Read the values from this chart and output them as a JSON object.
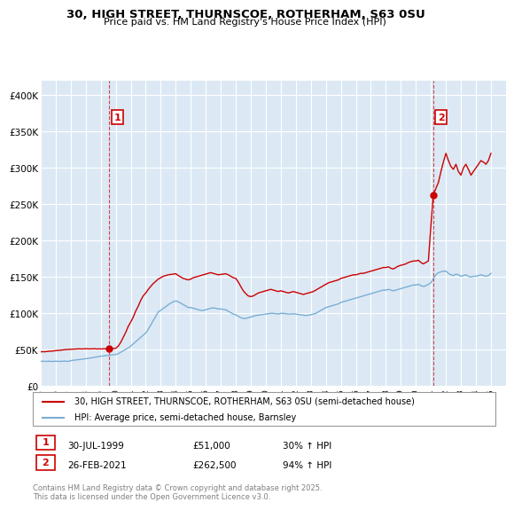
{
  "title_line1": "30, HIGH STREET, THURNSCOE, ROTHERHAM, S63 0SU",
  "title_line2": "Price paid vs. HM Land Registry's House Price Index (HPI)",
  "ylim": [
    0,
    420000
  ],
  "yticks": [
    0,
    50000,
    100000,
    150000,
    200000,
    250000,
    300000,
    350000,
    400000
  ],
  "ytick_labels": [
    "£0",
    "£50K",
    "£100K",
    "£150K",
    "£200K",
    "£250K",
    "£300K",
    "£350K",
    "£400K"
  ],
  "xlim_start": 1995.0,
  "xlim_end": 2026.0,
  "background_color": "#ffffff",
  "plot_bg_color": "#dce9f5",
  "grid_color": "#ffffff",
  "red_color": "#cc0000",
  "blue_color": "#7aaed4",
  "point1_x": 1999.58,
  "point1_y": 51000,
  "point2_x": 2021.15,
  "point2_y": 262500,
  "legend_line1": "30, HIGH STREET, THURNSCOE, ROTHERHAM, S63 0SU (semi-detached house)",
  "legend_line2": "HPI: Average price, semi-detached house, Barnsley",
  "point1_date": "30-JUL-1999",
  "point1_price": "£51,000",
  "point1_hpi": "30% ↑ HPI",
  "point2_date": "26-FEB-2021",
  "point2_price": "£262,500",
  "point2_hpi": "94% ↑ HPI",
  "footer": "Contains HM Land Registry data © Crown copyright and database right 2025.\nThis data is licensed under the Open Government Licence v3.0.",
  "red_x": [
    1995.0,
    1995.08,
    1995.17,
    1995.25,
    1995.33,
    1995.42,
    1995.5,
    1995.58,
    1995.67,
    1995.75,
    1995.83,
    1995.92,
    1996.0,
    1996.08,
    1996.17,
    1996.25,
    1996.33,
    1996.42,
    1996.5,
    1996.58,
    1996.67,
    1996.75,
    1996.83,
    1996.92,
    1997.0,
    1997.08,
    1997.17,
    1997.25,
    1997.33,
    1997.42,
    1997.5,
    1997.58,
    1997.67,
    1997.75,
    1997.83,
    1997.92,
    1998.0,
    1998.08,
    1998.17,
    1998.25,
    1998.33,
    1998.42,
    1998.5,
    1998.58,
    1998.67,
    1998.75,
    1998.83,
    1998.92,
    1999.0,
    1999.08,
    1999.17,
    1999.25,
    1999.33,
    1999.42,
    1999.5,
    1999.58,
    2000.0,
    2000.17,
    2000.33,
    2000.5,
    2000.67,
    2000.83,
    2001.0,
    2001.17,
    2001.33,
    2001.5,
    2001.67,
    2001.83,
    2002.0,
    2002.17,
    2002.33,
    2002.5,
    2002.67,
    2002.83,
    2003.0,
    2003.17,
    2003.33,
    2003.5,
    2003.67,
    2003.83,
    2004.0,
    2004.17,
    2004.33,
    2004.5,
    2004.67,
    2004.83,
    2005.0,
    2005.17,
    2005.33,
    2005.5,
    2005.67,
    2005.83,
    2006.0,
    2006.17,
    2006.33,
    2006.5,
    2006.67,
    2006.83,
    2007.0,
    2007.17,
    2007.33,
    2007.5,
    2007.67,
    2007.83,
    2008.0,
    2008.17,
    2008.33,
    2008.5,
    2008.67,
    2008.83,
    2009.0,
    2009.17,
    2009.33,
    2009.5,
    2009.67,
    2009.83,
    2010.0,
    2010.17,
    2010.33,
    2010.5,
    2010.67,
    2010.83,
    2011.0,
    2011.17,
    2011.33,
    2011.5,
    2011.67,
    2011.83,
    2012.0,
    2012.17,
    2012.33,
    2012.5,
    2012.67,
    2012.83,
    2013.0,
    2013.17,
    2013.33,
    2013.5,
    2013.67,
    2013.83,
    2014.0,
    2014.17,
    2014.33,
    2014.5,
    2014.67,
    2014.83,
    2015.0,
    2015.17,
    2015.33,
    2015.5,
    2015.67,
    2015.83,
    2016.0,
    2016.17,
    2016.33,
    2016.5,
    2016.67,
    2016.83,
    2017.0,
    2017.17,
    2017.33,
    2017.5,
    2017.67,
    2017.83,
    2018.0,
    2018.17,
    2018.33,
    2018.5,
    2018.67,
    2018.83,
    2019.0,
    2019.17,
    2019.33,
    2019.5,
    2019.67,
    2019.83,
    2020.0,
    2020.17,
    2020.33,
    2020.5,
    2020.67,
    2020.83,
    2021.15,
    2021.5,
    2021.67,
    2021.83,
    2022.0,
    2022.17,
    2022.33,
    2022.5,
    2022.67,
    2022.83,
    2023.0,
    2023.17,
    2023.33,
    2023.5,
    2023.67,
    2023.83,
    2024.0,
    2024.17,
    2024.33,
    2024.5,
    2024.67,
    2024.83,
    2025.0
  ],
  "red_y": [
    47000,
    47200,
    47400,
    47100,
    47300,
    47500,
    47800,
    48000,
    47900,
    48100,
    48300,
    48500,
    48700,
    48900,
    49000,
    49200,
    49400,
    49600,
    49800,
    50000,
    50100,
    50200,
    50400,
    50500,
    50600,
    50700,
    50800,
    51000,
    51100,
    51200,
    51300,
    51200,
    51100,
    51000,
    51100,
    51200,
    51300,
    51400,
    51200,
    51000,
    51100,
    51200,
    51300,
    51400,
    51200,
    51000,
    51100,
    51200,
    51000,
    51100,
    51200,
    51300,
    51100,
    51000,
    51000,
    51000,
    52000,
    55000,
    60000,
    67000,
    74000,
    82000,
    88000,
    95000,
    103000,
    110000,
    118000,
    124000,
    128000,
    133000,
    137000,
    141000,
    144000,
    147000,
    149000,
    151000,
    152000,
    153000,
    153500,
    154000,
    154500,
    152000,
    150000,
    148000,
    147000,
    146000,
    147000,
    149000,
    150000,
    151000,
    152000,
    153000,
    154000,
    155000,
    156000,
    155000,
    154000,
    153000,
    153500,
    154000,
    154500,
    153000,
    151000,
    149000,
    148000,
    143000,
    137000,
    131000,
    127000,
    124000,
    123000,
    124000,
    126000,
    128000,
    129000,
    130000,
    131000,
    132000,
    133000,
    132000,
    131000,
    130000,
    131000,
    130000,
    129000,
    128000,
    129000,
    130000,
    129000,
    128000,
    127000,
    126000,
    127000,
    128000,
    129000,
    130000,
    132000,
    134000,
    136000,
    138000,
    140000,
    142000,
    143000,
    144000,
    145000,
    146000,
    148000,
    149000,
    150000,
    151000,
    152000,
    153000,
    153000,
    154000,
    155000,
    155000,
    156000,
    157000,
    158000,
    159000,
    160000,
    161000,
    162000,
    163000,
    163000,
    164000,
    162000,
    161000,
    163000,
    165000,
    166000,
    167000,
    168000,
    170000,
    171000,
    172000,
    172000,
    173000,
    170000,
    168000,
    170000,
    172000,
    262500,
    280000,
    295000,
    308000,
    320000,
    310000,
    302000,
    298000,
    305000,
    295000,
    290000,
    300000,
    305000,
    298000,
    290000,
    295000,
    300000,
    305000,
    310000,
    308000,
    305000,
    310000,
    320000
  ],
  "blue_x": [
    1995.0,
    1995.08,
    1995.17,
    1995.25,
    1995.33,
    1995.42,
    1995.5,
    1995.58,
    1995.67,
    1995.75,
    1995.83,
    1995.92,
    1996.0,
    1996.08,
    1996.17,
    1996.25,
    1996.33,
    1996.42,
    1996.5,
    1996.58,
    1996.67,
    1996.75,
    1996.83,
    1996.92,
    1997.0,
    1997.08,
    1997.17,
    1997.25,
    1997.33,
    1997.42,
    1997.5,
    1997.58,
    1997.67,
    1997.75,
    1997.83,
    1997.92,
    1998.0,
    1998.08,
    1998.17,
    1998.25,
    1998.33,
    1998.42,
    1998.5,
    1998.58,
    1998.67,
    1998.75,
    1998.83,
    1998.92,
    1999.0,
    1999.08,
    1999.17,
    1999.25,
    1999.33,
    1999.42,
    1999.5,
    1999.58,
    1999.67,
    1999.75,
    1999.83,
    1999.92,
    2000.0,
    2000.08,
    2000.17,
    2000.25,
    2000.33,
    2000.42,
    2000.5,
    2000.58,
    2000.67,
    2000.75,
    2000.83,
    2000.92,
    2001.0,
    2001.08,
    2001.17,
    2001.25,
    2001.33,
    2001.42,
    2001.5,
    2001.58,
    2001.67,
    2001.75,
    2001.83,
    2001.92,
    2002.0,
    2002.17,
    2002.33,
    2002.5,
    2002.67,
    2002.83,
    2003.0,
    2003.17,
    2003.33,
    2003.5,
    2003.67,
    2003.83,
    2004.0,
    2004.17,
    2004.33,
    2004.5,
    2004.67,
    2004.83,
    2005.0,
    2005.17,
    2005.33,
    2005.5,
    2005.67,
    2005.83,
    2006.0,
    2006.17,
    2006.33,
    2006.5,
    2006.67,
    2006.83,
    2007.0,
    2007.17,
    2007.33,
    2007.5,
    2007.67,
    2007.83,
    2008.0,
    2008.17,
    2008.33,
    2008.5,
    2008.67,
    2008.83,
    2009.0,
    2009.17,
    2009.33,
    2009.5,
    2009.67,
    2009.83,
    2010.0,
    2010.17,
    2010.33,
    2010.5,
    2010.67,
    2010.83,
    2011.0,
    2011.17,
    2011.33,
    2011.5,
    2011.67,
    2011.83,
    2012.0,
    2012.17,
    2012.33,
    2012.5,
    2012.67,
    2012.83,
    2013.0,
    2013.17,
    2013.33,
    2013.5,
    2013.67,
    2013.83,
    2014.0,
    2014.17,
    2014.33,
    2014.5,
    2014.67,
    2014.83,
    2015.0,
    2015.17,
    2015.33,
    2015.5,
    2015.67,
    2015.83,
    2016.0,
    2016.17,
    2016.33,
    2016.5,
    2016.67,
    2016.83,
    2017.0,
    2017.17,
    2017.33,
    2017.5,
    2017.67,
    2017.83,
    2018.0,
    2018.17,
    2018.33,
    2018.5,
    2018.67,
    2018.83,
    2019.0,
    2019.17,
    2019.33,
    2019.5,
    2019.67,
    2019.83,
    2020.0,
    2020.17,
    2020.33,
    2020.5,
    2020.67,
    2020.83,
    2021.0,
    2021.17,
    2021.33,
    2021.5,
    2021.67,
    2021.83,
    2022.0,
    2022.17,
    2022.33,
    2022.5,
    2022.67,
    2022.83,
    2023.0,
    2023.17,
    2023.33,
    2023.5,
    2023.67,
    2023.83,
    2024.0,
    2024.17,
    2024.33,
    2024.5,
    2024.67,
    2024.83,
    2025.0
  ],
  "blue_y": [
    34000,
    34100,
    34200,
    34000,
    33900,
    34000,
    34100,
    34200,
    34000,
    33800,
    34000,
    34100,
    34200,
    34100,
    34000,
    33900,
    34000,
    34100,
    34200,
    34300,
    34200,
    34100,
    34000,
    34100,
    35000,
    35200,
    35400,
    35600,
    35800,
    36000,
    36200,
    36400,
    36600,
    36800,
    37000,
    37200,
    37500,
    37800,
    38100,
    38400,
    38700,
    39000,
    39300,
    39600,
    39900,
    40200,
    40500,
    40800,
    41000,
    41200,
    41400,
    41600,
    41800,
    42000,
    42200,
    42400,
    42600,
    42800,
    43000,
    43200,
    43500,
    44000,
    44500,
    45500,
    46500,
    47500,
    48500,
    49500,
    50500,
    51500,
    52500,
    53500,
    55000,
    56500,
    58000,
    59500,
    61000,
    62500,
    64000,
    65500,
    67000,
    68500,
    70000,
    71500,
    73000,
    78000,
    84000,
    90000,
    96000,
    102000,
    104000,
    107000,
    109000,
    112000,
    114000,
    116000,
    117000,
    116000,
    114000,
    112000,
    110000,
    108000,
    108000,
    107000,
    106000,
    105000,
    104000,
    104000,
    105000,
    106000,
    107000,
    107500,
    107000,
    106000,
    106000,
    105500,
    105000,
    103000,
    101000,
    99000,
    98000,
    96000,
    94000,
    93000,
    93000,
    94000,
    95000,
    96000,
    97000,
    97500,
    98000,
    98500,
    99000,
    99500,
    100000,
    100000,
    99500,
    99000,
    100000,
    100000,
    99500,
    99000,
    99000,
    99500,
    99000,
    98500,
    98000,
    97500,
    97000,
    97500,
    98000,
    99000,
    100000,
    102000,
    104000,
    106000,
    108000,
    109000,
    110000,
    111000,
    112000,
    113000,
    115000,
    116000,
    117000,
    118000,
    119000,
    120000,
    121000,
    122000,
    123000,
    124000,
    125000,
    126000,
    127000,
    128000,
    129000,
    130000,
    131000,
    132000,
    132000,
    133000,
    132000,
    131000,
    132000,
    133000,
    134000,
    135000,
    136000,
    137000,
    138000,
    139000,
    139000,
    140000,
    138000,
    137000,
    138000,
    140000,
    142000,
    148000,
    153000,
    156000,
    157000,
    158000,
    158000,
    155000,
    153000,
    152000,
    154000,
    153000,
    151000,
    152000,
    153000,
    151000,
    150000,
    151000,
    151000,
    152000,
    153000,
    152000,
    151000,
    152000,
    155000
  ]
}
